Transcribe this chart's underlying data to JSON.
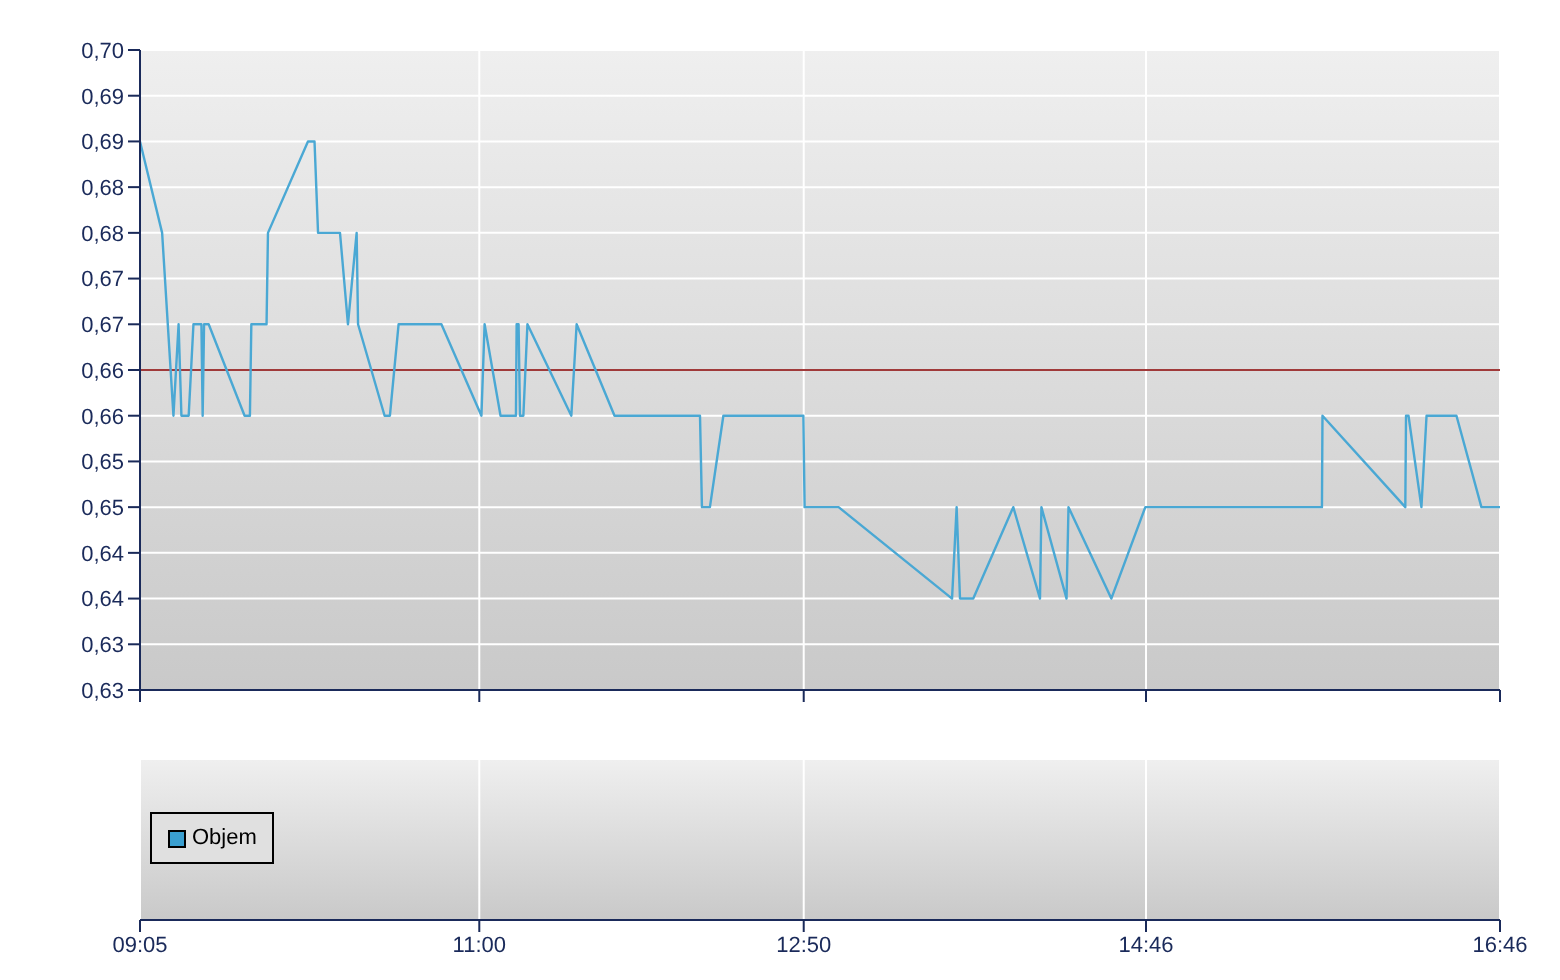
{
  "chart_data": [
    {
      "type": "line",
      "x": [
        9.083,
        9.208,
        9.272,
        9.301,
        9.317,
        9.358,
        9.385,
        9.43,
        9.437,
        9.445,
        9.471,
        9.674,
        9.704,
        9.712,
        9.798,
        9.806,
        10.032,
        10.069,
        10.089,
        10.213,
        10.258,
        10.307,
        10.315,
        10.465,
        10.495,
        10.544,
        10.786,
        11.012,
        11.03,
        11.12,
        11.207,
        11.211,
        11.222,
        11.23,
        11.249,
        11.272,
        11.52,
        11.55,
        11.764,
        12.247,
        12.258,
        12.303,
        12.379,
        12.831,
        12.838,
        13.03,
        13.671,
        13.697,
        13.716,
        13.791,
        14.017,
        14.168,
        14.176,
        14.318,
        14.329,
        14.571,
        14.763,
        15.761,
        15.764,
        16.232,
        16.236,
        16.25,
        16.323,
        16.352,
        16.521,
        16.662,
        16.767
      ],
      "values": [
        0.69,
        0.68,
        0.66,
        0.67,
        0.66,
        0.66,
        0.67,
        0.67,
        0.66,
        0.67,
        0.67,
        0.66,
        0.66,
        0.67,
        0.67,
        0.68,
        0.69,
        0.69,
        0.68,
        0.68,
        0.67,
        0.68,
        0.67,
        0.66,
        0.66,
        0.67,
        0.67,
        0.66,
        0.67,
        0.66,
        0.66,
        0.67,
        0.67,
        0.66,
        0.66,
        0.67,
        0.66,
        0.67,
        0.66,
        0.66,
        0.65,
        0.65,
        0.66,
        0.66,
        0.65,
        0.65,
        0.64,
        0.65,
        0.64,
        0.64,
        0.65,
        0.64,
        0.65,
        0.64,
        0.65,
        0.64,
        0.65,
        0.65,
        0.66,
        0.65,
        0.66,
        0.66,
        0.65,
        0.66,
        0.66,
        0.65,
        0.65
      ],
      "color": "#4aa8d4",
      "xlim": [
        9.083,
        16.767
      ],
      "xticks": [
        {
          "value": 9.083,
          "label": "09:05"
        },
        {
          "value": 11,
          "label": "11:00"
        },
        {
          "value": 12.833,
          "label": "12:50"
        },
        {
          "value": 14.767,
          "label": "14:46"
        },
        {
          "value": 16.767,
          "label": "16:46"
        }
      ],
      "ylim": [
        0.63,
        0.7
      ],
      "yticks": [
        {
          "value": 0.63,
          "label": "0,63"
        },
        {
          "value": 0.635,
          "label": "0,63"
        },
        {
          "value": 0.64,
          "label": "0,64"
        },
        {
          "value": 0.645,
          "label": "0,64"
        },
        {
          "value": 0.65,
          "label": "0,65"
        },
        {
          "value": 0.655,
          "label": "0,65"
        },
        {
          "value": 0.66,
          "label": "0,66"
        },
        {
          "value": 0.665,
          "label": "0,66"
        },
        {
          "value": 0.67,
          "label": "0,67"
        },
        {
          "value": 0.675,
          "label": "0,67"
        },
        {
          "value": 0.68,
          "label": "0,68"
        },
        {
          "value": 0.685,
          "label": "0,68"
        },
        {
          "value": 0.69,
          "label": "0,69"
        },
        {
          "value": 0.695,
          "label": "0,69"
        },
        {
          "value": 0.7,
          "label": "0,70"
        }
      ],
      "ref_lines": [
        {
          "axis": "y",
          "value": 0.665,
          "color": "#a03a3a"
        }
      ],
      "grid": true,
      "tick_labels": "y"
    },
    {
      "type": "other",
      "series": [
        {
          "name": "Objem",
          "color": "#3a9fd0"
        }
      ],
      "legend": "bottom left"
    }
  ]
}
